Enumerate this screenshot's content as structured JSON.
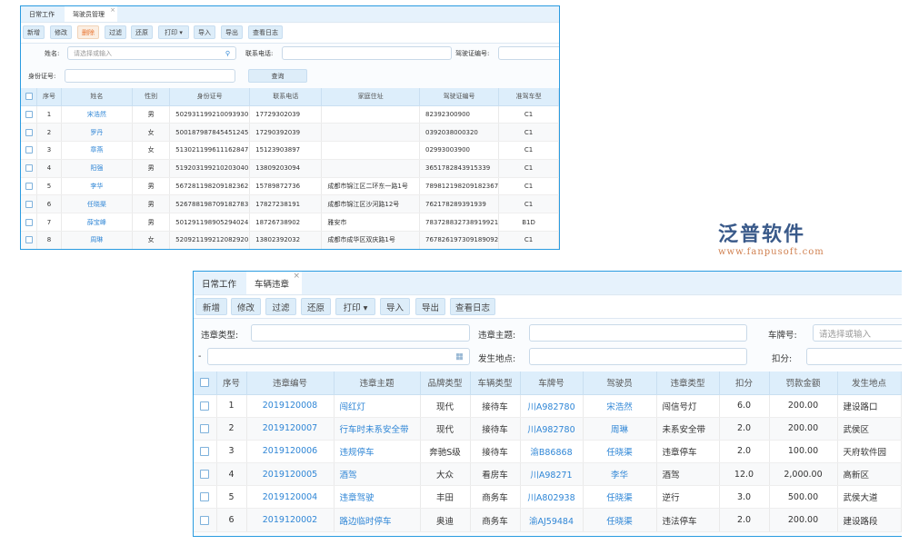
{
  "driver_panel": {
    "tabs": [
      "日常工作",
      "驾驶员管理"
    ],
    "toolbar": [
      "新增",
      "修改",
      "删除",
      "过滤",
      "还原",
      "打印 ▾",
      "导入",
      "导出",
      "查看日志"
    ],
    "form": {
      "name_label": "姓名:",
      "name_placeholder": "请选择或输入",
      "phone_label": "联系电话:",
      "license_label": "驾驶证编号:",
      "id_label": "身份证号:",
      "query_button": "查询"
    },
    "columns": [
      "序号",
      "姓名",
      "性别",
      "身份证号",
      "联系电话",
      "家庭住址",
      "驾驶证编号",
      "准驾车型"
    ],
    "rows": [
      [
        "1",
        "宋浩然",
        "男",
        "502931199210093930",
        "17729302039",
        "",
        "82392300900",
        "C1"
      ],
      [
        "2",
        "罗丹",
        "女",
        "500187987845451245",
        "17290392039",
        "",
        "0392038000320",
        "C1"
      ],
      [
        "3",
        "章燕",
        "女",
        "513021199611162847",
        "15123903897",
        "",
        "02993003900",
        "C1"
      ],
      [
        "4",
        "阳强",
        "男",
        "519203199210203040",
        "13809203094",
        "",
        "3651782843915339",
        "C1"
      ],
      [
        "5",
        "李华",
        "男",
        "567281198209182362",
        "15789872736",
        "成都市锦江区二环东一路1号",
        "789812198209182367",
        "C1"
      ],
      [
        "6",
        "任晓渠",
        "男",
        "526788198709182783",
        "17827238191",
        "成都市锦江区沙河路12号",
        "762178289391939",
        "C1"
      ],
      [
        "7",
        "薛宝峰",
        "男",
        "501291198905294024",
        "18726738902",
        "雅安市",
        "783728832738919921",
        "B1D"
      ],
      [
        "8",
        "周琳",
        "女",
        "520921199212082920",
        "13802392032",
        "成都市成华区双庆路1号",
        "767826197309189092",
        "C1"
      ]
    ]
  },
  "violation_panel": {
    "tabs": [
      "日常工作",
      "车辆违章"
    ],
    "toolbar": [
      "新增",
      "修改",
      "过滤",
      "还原",
      "打印 ▾",
      "导入",
      "导出",
      "查看日志"
    ],
    "form": {
      "type_label": "违章类型:",
      "subject_label": "违章主题:",
      "plate_label": "车牌号:",
      "plate_placeholder": "请选择或输入",
      "date_dash": "-",
      "location_label": "发生地点:",
      "points_label": "扣分:"
    },
    "columns": [
      "序号",
      "违章编号",
      "违章主题",
      "品牌类型",
      "车辆类型",
      "车牌号",
      "驾驶员",
      "违章类型",
      "扣分",
      "罚款金额",
      "发生地点"
    ],
    "rows": [
      [
        "1",
        "2019120008",
        "闯红灯",
        "现代",
        "接待车",
        "川A982780",
        "宋浩然",
        "闯信号灯",
        "6.0",
        "200.00",
        "建设路口"
      ],
      [
        "2",
        "2019120007",
        "行车时未系安全带",
        "现代",
        "接待车",
        "川A982780",
        "周琳",
        "未系安全带",
        "2.0",
        "200.00",
        "武侯区"
      ],
      [
        "3",
        "2019120006",
        "违规停车",
        "奔驰S级",
        "接待车",
        "渝B86868",
        "任晓渠",
        "违章停车",
        "2.0",
        "100.00",
        "天府软件园"
      ],
      [
        "4",
        "2019120005",
        "酒驾",
        "大众",
        "看房车",
        "川A98271",
        "李华",
        "酒驾",
        "12.0",
        "2,000.00",
        "高新区"
      ],
      [
        "5",
        "2019120004",
        "违章驾驶",
        "丰田",
        "商务车",
        "川A802938",
        "任晓渠",
        "逆行",
        "3.0",
        "500.00",
        "武侯大道"
      ],
      [
        "6",
        "2019120002",
        "路边临时停车",
        "奥迪",
        "商务车",
        "渝AJ59484",
        "任晓渠",
        "违法停车",
        "2.0",
        "200.00",
        "建设路段"
      ]
    ]
  },
  "watermark": {
    "text": "泛普软件",
    "url": "www.fanpusoft.com"
  },
  "colors": {
    "accent": "#2a9be0",
    "link": "#2f86d6",
    "delete": "#e8712c",
    "header_bg": "#ddeefb"
  }
}
